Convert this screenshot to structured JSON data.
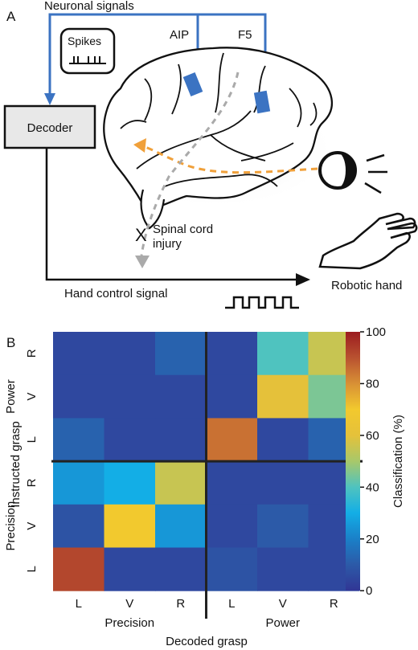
{
  "panel_a": {
    "letter": "A",
    "signal_title": "Neuronal signals",
    "spikes_label": "Spikes",
    "area_aip": "AIP",
    "area_f5": "F5",
    "decoder_label": "Decoder",
    "injury_line1": "Spinal cord",
    "injury_line2": "injury",
    "injury_mark": "X",
    "hand_control_label": "Hand control signal",
    "robotic_hand_label": "Robotic hand",
    "colors": {
      "signal_blue": "#3b73c2",
      "visual_orange": "#f0a03a",
      "spinal_gray": "#aaaaaa"
    },
    "icons": [
      "brain-icon",
      "eye-icon",
      "robotic-hand-icon",
      "spike-train-icon",
      "square-wave-icon"
    ]
  },
  "panel_b": {
    "letter": "B",
    "chart_data": {
      "type": "heatmap",
      "xlabel": "Decoded grasp",
      "ylabel": "Instructed grasp",
      "x_groups": [
        "Precision",
        "Power"
      ],
      "y_groups": [
        "Power",
        "Precision"
      ],
      "x_ticks": [
        "L",
        "V",
        "R",
        "L",
        "V",
        "R"
      ],
      "y_ticks": [
        "R",
        "V",
        "L",
        "R",
        "V",
        "L"
      ],
      "colorbar": {
        "label": "Classification (%)",
        "ticks": [
          100,
          80,
          60,
          40,
          20,
          0
        ],
        "range": [
          0,
          100
        ]
      },
      "values": [
        [
          5,
          5,
          12,
          5,
          40,
          55
        ],
        [
          5,
          5,
          5,
          5,
          60,
          45
        ],
        [
          12,
          5,
          5,
          85,
          5,
          12
        ],
        [
          25,
          30,
          55,
          5,
          5,
          5
        ],
        [
          8,
          70,
          25,
          5,
          10,
          5
        ],
        [
          92,
          5,
          5,
          8,
          5,
          5
        ]
      ]
    }
  }
}
